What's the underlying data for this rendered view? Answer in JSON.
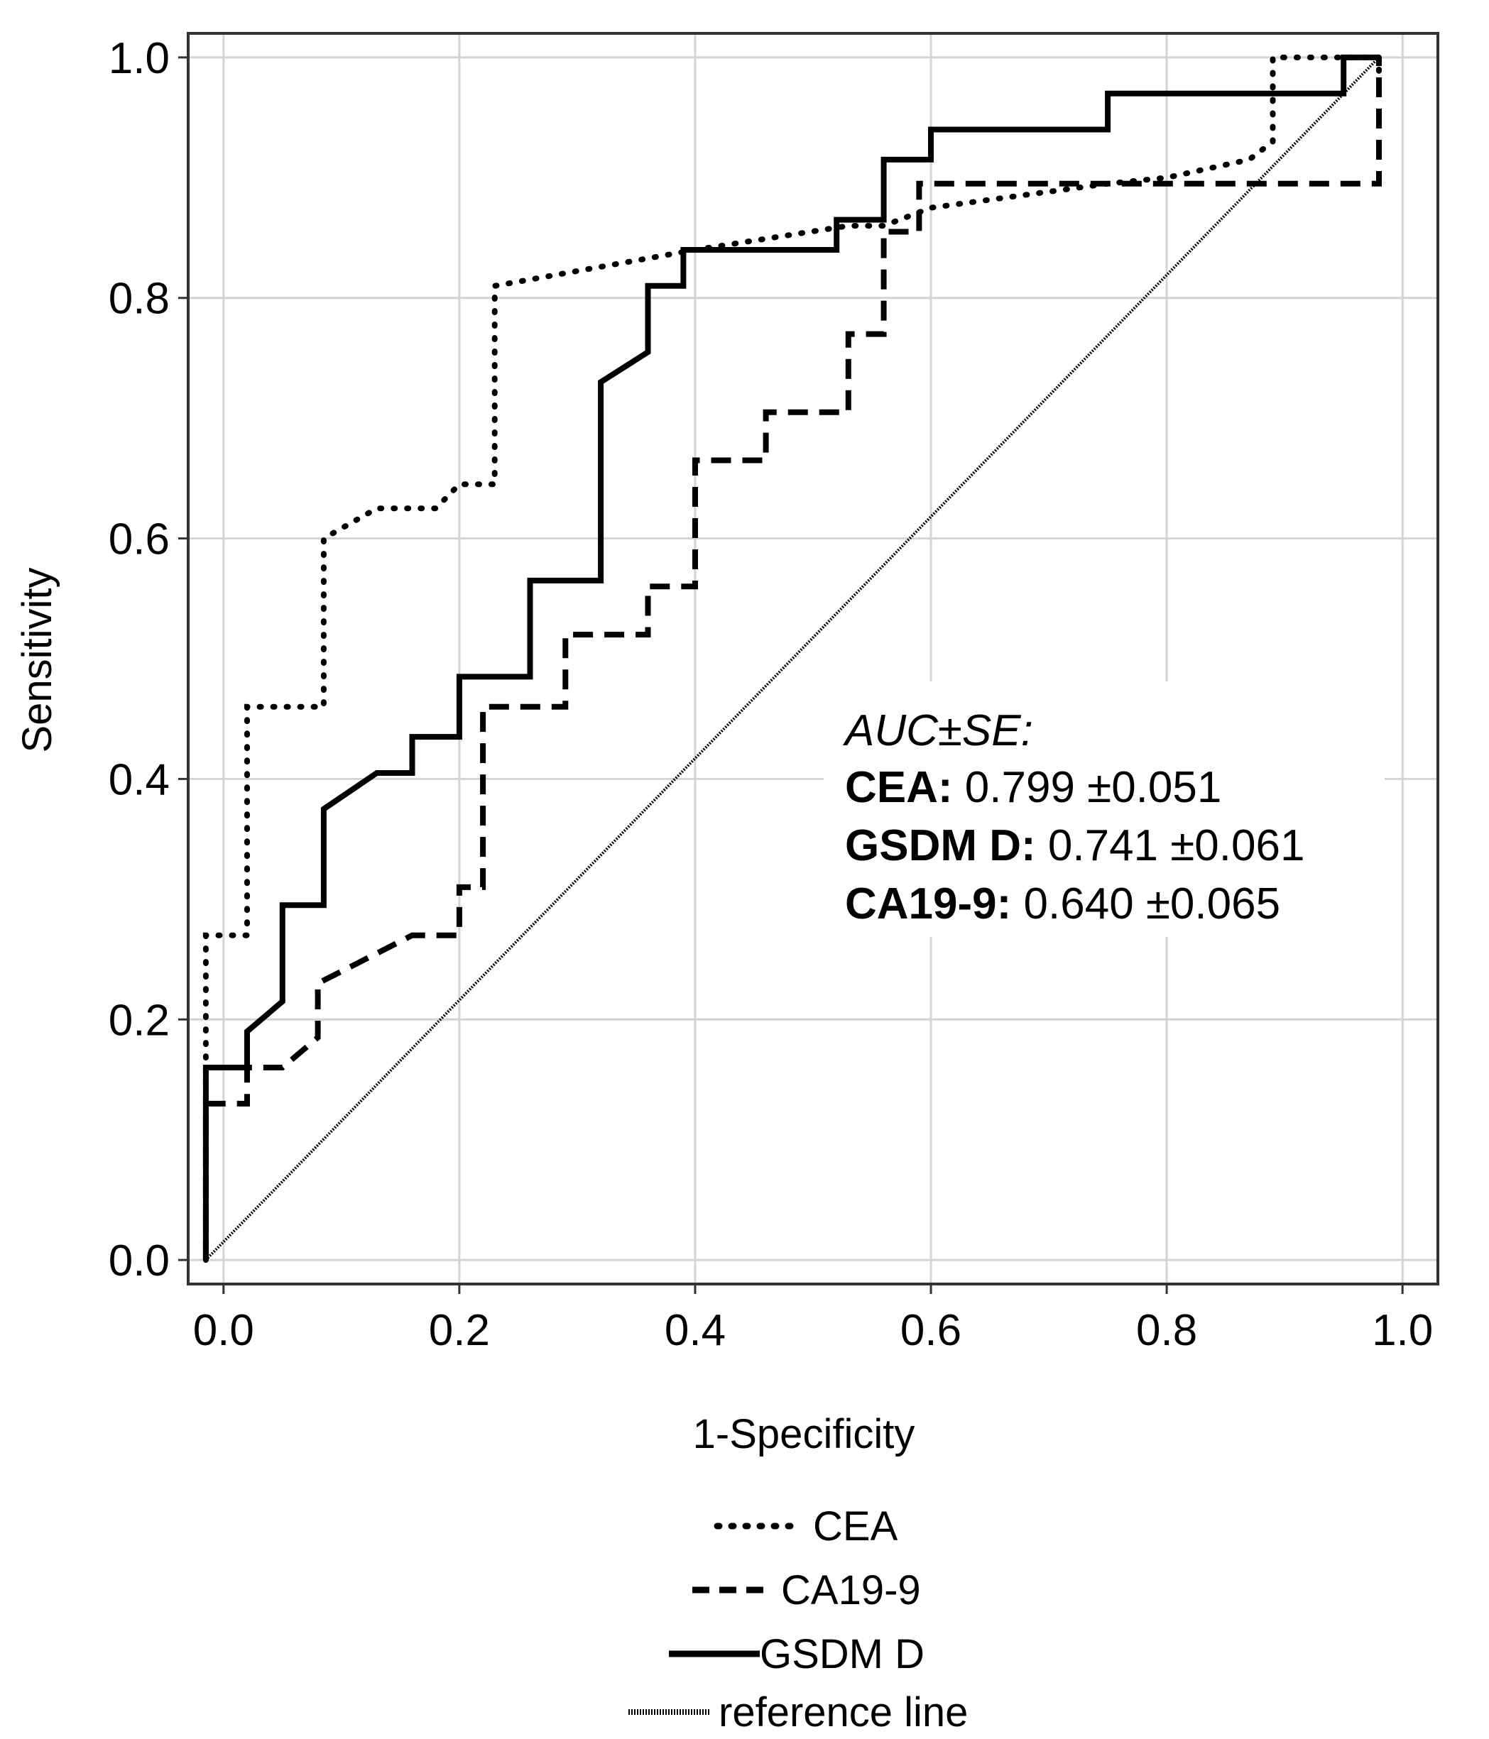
{
  "chart_data": {
    "type": "line",
    "title": "",
    "xlabel": "1-Specificity",
    "ylabel": "Sensitivity",
    "xlim": [
      -0.03,
      1.03
    ],
    "ylim": [
      -0.02,
      1.02
    ],
    "xticks": [
      "0.0",
      "0.2",
      "0.4",
      "0.6",
      "0.8",
      "1.0"
    ],
    "yticks": [
      "0.0",
      "0.2",
      "0.4",
      "0.6",
      "0.8",
      "1.0"
    ],
    "grid": true,
    "annotation": {
      "heading": "AUC±SE:",
      "rows": [
        {
          "label": "CEA:",
          "value": "0.799 ±0.051"
        },
        {
          "label": "GSDM D:",
          "value": "0.741 ±0.061"
        },
        {
          "label": "CA19-9:",
          "value": "0.640 ±0.065"
        }
      ]
    },
    "legend_position": "bottom",
    "series": [
      {
        "name": "CEA",
        "style": "dotted",
        "x": [
          -0.015,
          -0.015,
          0.02,
          0.02,
          0.085,
          0.085,
          0.13,
          0.18,
          0.2,
          0.23,
          0.23,
          0.4,
          0.53,
          0.56,
          0.6,
          0.75,
          0.8,
          0.87,
          0.89,
          0.89,
          0.98,
          0.98
        ],
        "y": [
          0.0,
          0.27,
          0.27,
          0.46,
          0.46,
          0.6,
          0.625,
          0.625,
          0.645,
          0.645,
          0.81,
          0.84,
          0.86,
          0.86,
          0.875,
          0.895,
          0.9,
          0.915,
          0.93,
          1.0,
          1.0,
          0.97
        ]
      },
      {
        "name": "CA19-9",
        "style": "dashed",
        "x": [
          -0.015,
          -0.015,
          0.02,
          0.02,
          0.05,
          0.08,
          0.08,
          0.12,
          0.16,
          0.2,
          0.2,
          0.22,
          0.22,
          0.29,
          0.29,
          0.36,
          0.36,
          0.4,
          0.4,
          0.46,
          0.46,
          0.53,
          0.53,
          0.56,
          0.56,
          0.59,
          0.59,
          0.98,
          0.98
        ],
        "y": [
          0.0,
          0.13,
          0.13,
          0.16,
          0.16,
          0.185,
          0.23,
          0.25,
          0.27,
          0.27,
          0.31,
          0.31,
          0.46,
          0.46,
          0.52,
          0.52,
          0.56,
          0.56,
          0.665,
          0.665,
          0.705,
          0.705,
          0.77,
          0.77,
          0.855,
          0.855,
          0.895,
          0.895,
          1.0
        ]
      },
      {
        "name": "GSDM D",
        "style": "solid",
        "x": [
          -0.015,
          -0.015,
          0.02,
          0.02,
          0.05,
          0.05,
          0.085,
          0.085,
          0.13,
          0.16,
          0.16,
          0.2,
          0.2,
          0.26,
          0.26,
          0.32,
          0.32,
          0.36,
          0.36,
          0.39,
          0.39,
          0.52,
          0.52,
          0.56,
          0.56,
          0.6,
          0.6,
          0.75,
          0.75,
          0.95,
          0.95,
          0.98
        ],
        "y": [
          0.0,
          0.16,
          0.16,
          0.19,
          0.215,
          0.295,
          0.295,
          0.375,
          0.405,
          0.405,
          0.435,
          0.435,
          0.485,
          0.485,
          0.565,
          0.565,
          0.73,
          0.755,
          0.81,
          0.81,
          0.84,
          0.84,
          0.865,
          0.865,
          0.915,
          0.915,
          0.94,
          0.94,
          0.97,
          0.97,
          1.0,
          1.0
        ]
      },
      {
        "name": "reference line",
        "style": "reference",
        "x": [
          -0.015,
          0.98
        ],
        "y": [
          0.0,
          1.0
        ]
      }
    ]
  }
}
